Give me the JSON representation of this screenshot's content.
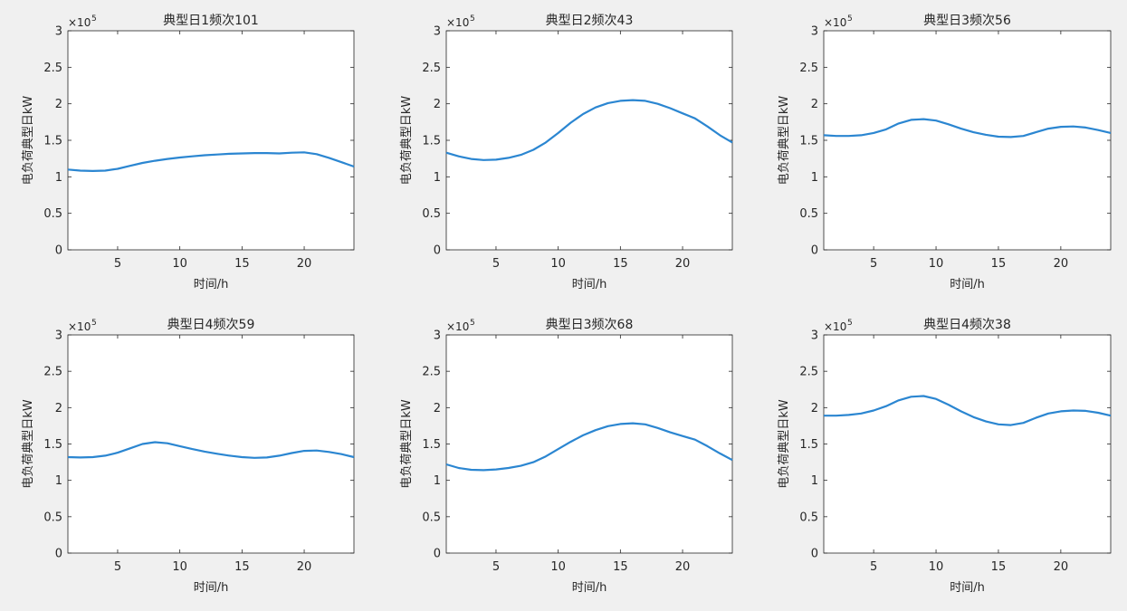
{
  "figure": {
    "background": "#f0f0f0",
    "line_color": "#2b86d1"
  },
  "chart_data": [
    {
      "type": "line",
      "title": "典型日1频次101",
      "xlabel": "时间/h",
      "ylabel": "电负荷典型日kW",
      "exponent_label": "×10",
      "exponent_power": "5",
      "xlim": [
        1,
        24
      ],
      "ylim": [
        0,
        3
      ],
      "xticks": [
        5,
        10,
        15,
        20
      ],
      "yticks": [
        0,
        0.5,
        1,
        1.5,
        2,
        2.5,
        3
      ],
      "ytick_labels": [
        "0",
        "0.5",
        "1",
        "1.5",
        "2",
        "2.5",
        "3"
      ],
      "x": [
        1,
        2,
        3,
        4,
        5,
        6,
        7,
        8,
        9,
        10,
        11,
        12,
        13,
        14,
        15,
        16,
        17,
        18,
        19,
        20,
        21,
        22,
        23,
        24
      ],
      "values": [
        1.1,
        1.085,
        1.08,
        1.085,
        1.11,
        1.15,
        1.19,
        1.22,
        1.245,
        1.265,
        1.28,
        1.295,
        1.305,
        1.315,
        1.32,
        1.325,
        1.325,
        1.32,
        1.33,
        1.335,
        1.31,
        1.26,
        1.2,
        1.14
      ]
    },
    {
      "type": "line",
      "title": "典型日2频次43",
      "xlabel": "时间/h",
      "ylabel": "电负荷典型日kW",
      "exponent_label": "×10",
      "exponent_power": "5",
      "xlim": [
        1,
        24
      ],
      "ylim": [
        0,
        3
      ],
      "xticks": [
        5,
        10,
        15,
        20
      ],
      "yticks": [
        0,
        0.5,
        1,
        1.5,
        2,
        2.5,
        3
      ],
      "ytick_labels": [
        "0",
        "0.5",
        "1",
        "1.5",
        "2",
        "2.5",
        "3"
      ],
      "x": [
        1,
        2,
        3,
        4,
        5,
        6,
        7,
        8,
        9,
        10,
        11,
        12,
        13,
        14,
        15,
        16,
        17,
        18,
        19,
        20,
        21,
        22,
        23,
        24
      ],
      "values": [
        1.33,
        1.28,
        1.245,
        1.23,
        1.235,
        1.26,
        1.3,
        1.37,
        1.47,
        1.6,
        1.74,
        1.86,
        1.95,
        2.01,
        2.04,
        2.05,
        2.04,
        2.0,
        1.94,
        1.87,
        1.8,
        1.69,
        1.57,
        1.47
      ]
    },
    {
      "type": "line",
      "title": "典型日3频次56",
      "xlabel": "时间/h",
      "ylabel": "电负荷典型日kW",
      "exponent_label": "×10",
      "exponent_power": "5",
      "xlim": [
        1,
        24
      ],
      "ylim": [
        0,
        3
      ],
      "xticks": [
        5,
        10,
        15,
        20
      ],
      "yticks": [
        0,
        0.5,
        1,
        1.5,
        2,
        2.5,
        3
      ],
      "ytick_labels": [
        "0",
        "0.5",
        "1",
        "1.5",
        "2",
        "2.5",
        "3"
      ],
      "x": [
        1,
        2,
        3,
        4,
        5,
        6,
        7,
        8,
        9,
        10,
        11,
        12,
        13,
        14,
        15,
        16,
        17,
        18,
        19,
        20,
        21,
        22,
        23,
        24
      ],
      "values": [
        1.57,
        1.56,
        1.56,
        1.57,
        1.6,
        1.65,
        1.73,
        1.78,
        1.79,
        1.77,
        1.72,
        1.66,
        1.61,
        1.575,
        1.55,
        1.545,
        1.56,
        1.61,
        1.66,
        1.685,
        1.69,
        1.675,
        1.64,
        1.6
      ]
    },
    {
      "type": "line",
      "title": "典型日4频次59",
      "xlabel": "时间/h",
      "ylabel": "电负荷典型日kW",
      "exponent_label": "×10",
      "exponent_power": "5",
      "xlim": [
        1,
        24
      ],
      "ylim": [
        0,
        3
      ],
      "xticks": [
        5,
        10,
        15,
        20
      ],
      "yticks": [
        0,
        0.5,
        1,
        1.5,
        2,
        2.5,
        3
      ],
      "ytick_labels": [
        "0",
        "0.5",
        "1",
        "1.5",
        "2",
        "2.5",
        "3"
      ],
      "x": [
        1,
        2,
        3,
        4,
        5,
        6,
        7,
        8,
        9,
        10,
        11,
        12,
        13,
        14,
        15,
        16,
        17,
        18,
        19,
        20,
        21,
        22,
        23,
        24
      ],
      "values": [
        1.32,
        1.315,
        1.32,
        1.34,
        1.38,
        1.44,
        1.5,
        1.525,
        1.51,
        1.47,
        1.43,
        1.395,
        1.365,
        1.34,
        1.32,
        1.31,
        1.315,
        1.34,
        1.375,
        1.405,
        1.41,
        1.39,
        1.36,
        1.32
      ]
    },
    {
      "type": "line",
      "title": "典型日3频次68",
      "xlabel": "时间/h",
      "ylabel": "电负荷典型日kW",
      "exponent_label": "×10",
      "exponent_power": "5",
      "xlim": [
        1,
        24
      ],
      "ylim": [
        0,
        3
      ],
      "xticks": [
        5,
        10,
        15,
        20
      ],
      "yticks": [
        0,
        0.5,
        1,
        1.5,
        2,
        2.5,
        3
      ],
      "ytick_labels": [
        "0",
        "0.5",
        "1",
        "1.5",
        "2",
        "2.5",
        "3"
      ],
      "x": [
        1,
        2,
        3,
        4,
        5,
        6,
        7,
        8,
        9,
        10,
        11,
        12,
        13,
        14,
        15,
        16,
        17,
        18,
        19,
        20,
        21,
        22,
        23,
        24
      ],
      "values": [
        1.22,
        1.17,
        1.145,
        1.14,
        1.15,
        1.17,
        1.2,
        1.25,
        1.33,
        1.43,
        1.53,
        1.62,
        1.69,
        1.745,
        1.775,
        1.785,
        1.77,
        1.72,
        1.66,
        1.61,
        1.56,
        1.47,
        1.37,
        1.28
      ]
    },
    {
      "type": "line",
      "title": "典型日4频次38",
      "xlabel": "时间/h",
      "ylabel": "电负荷典型日kW",
      "exponent_label": "×10",
      "exponent_power": "5",
      "xlim": [
        1,
        24
      ],
      "ylim": [
        0,
        3
      ],
      "xticks": [
        5,
        10,
        15,
        20
      ],
      "yticks": [
        0,
        0.5,
        1,
        1.5,
        2,
        2.5,
        3
      ],
      "ytick_labels": [
        "0",
        "0.5",
        "1",
        "1.5",
        "2",
        "2.5",
        "3"
      ],
      "x": [
        1,
        2,
        3,
        4,
        5,
        6,
        7,
        8,
        9,
        10,
        11,
        12,
        13,
        14,
        15,
        16,
        17,
        18,
        19,
        20,
        21,
        22,
        23,
        24
      ],
      "values": [
        1.89,
        1.89,
        1.9,
        1.92,
        1.96,
        2.02,
        2.1,
        2.15,
        2.16,
        2.12,
        2.04,
        1.95,
        1.87,
        1.81,
        1.77,
        1.76,
        1.79,
        1.86,
        1.92,
        1.95,
        1.96,
        1.955,
        1.93,
        1.89
      ]
    }
  ]
}
